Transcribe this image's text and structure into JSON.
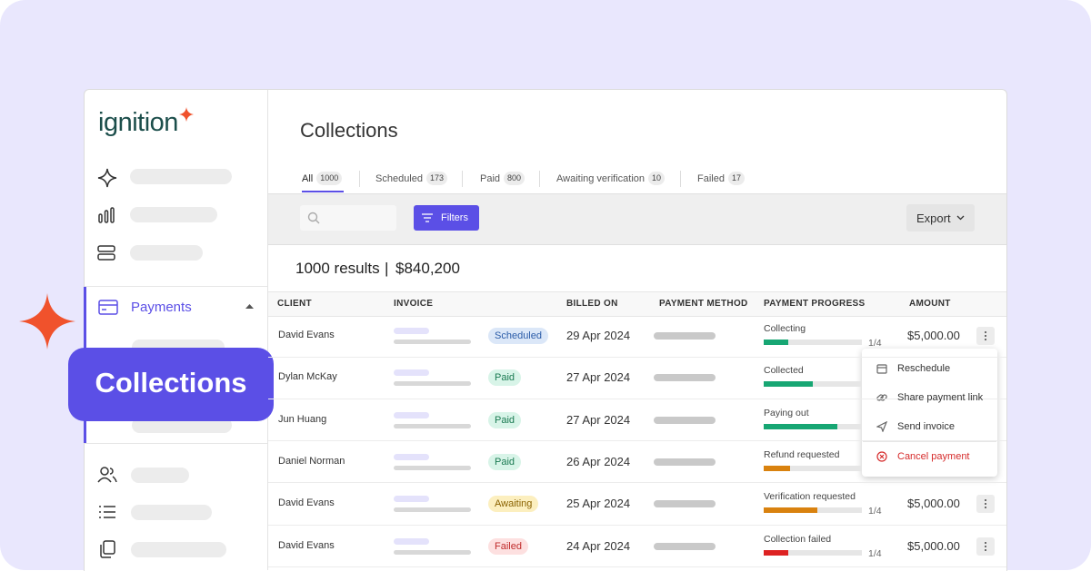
{
  "brand": "ignition",
  "nav": {
    "active": "Payments",
    "badge": "Collections"
  },
  "page": {
    "title": "Collections"
  },
  "tabs": [
    {
      "label": "All",
      "count": 1000
    },
    {
      "label": "Scheduled",
      "count": 173
    },
    {
      "label": "Paid",
      "count": 800
    },
    {
      "label": "Awaiting verification",
      "count": 10
    },
    {
      "label": "Failed",
      "count": 17
    }
  ],
  "toolbar": {
    "filters": "Filters",
    "export": "Export"
  },
  "summary": {
    "results": "1000 results",
    "separator": "|",
    "total": "$840,200"
  },
  "table": {
    "columns": [
      "CLIENT",
      "INVOICE",
      "BILLED ON",
      "PAYMENT METHOD",
      "PAYMENT PROGRESS",
      "AMOUNT"
    ],
    "rows": [
      {
        "client": "David Evans",
        "status": "Scheduled",
        "status_fg": "#2b5ca8",
        "status_bg": "#dbe7f8",
        "billed_on": "29 Apr 2024",
        "progress_label": "Collecting",
        "progress": 25,
        "progress_color": "#17a673",
        "step": "1/4",
        "amount": "$5,000.00"
      },
      {
        "client": "Dylan McKay",
        "status": "Paid",
        "status_fg": "#1b7a52",
        "status_bg": "#d8f4e8",
        "billed_on": "27 Apr 2024",
        "progress_label": "Collected",
        "progress": 50,
        "progress_color": "#17a673"
      },
      {
        "client": "Jun Huang",
        "status": "Paid",
        "status_fg": "#1b7a52",
        "status_bg": "#d8f4e8",
        "billed_on": "27 Apr 2024",
        "progress_label": "Paying out",
        "progress": 75,
        "progress_color": "#17a673"
      },
      {
        "client": "Daniel Norman",
        "status": "Paid",
        "status_fg": "#1b7a52",
        "status_bg": "#d8f4e8",
        "billed_on": "26 Apr 2024",
        "progress_label": "Refund requested",
        "progress": 27,
        "progress_color": "#d9820f"
      },
      {
        "client": "David Evans",
        "status": "Awaiting",
        "status_fg": "#8a6200",
        "status_bg": "#fcefbf",
        "billed_on": "25 Apr 2024",
        "progress_label": "Verification requested",
        "progress": 55,
        "progress_color": "#d9820f",
        "step": "1/4",
        "amount": "$5,000.00"
      },
      {
        "client": "David Evans",
        "status": "Failed",
        "status_fg": "#c02b2b",
        "status_bg": "#fde0e0",
        "billed_on": "24 Apr 2024",
        "progress_label": "Collection failed",
        "progress": 25,
        "progress_color": "#dd2222",
        "step": "1/4",
        "amount": "$5,000.00"
      }
    ]
  },
  "menu": {
    "items": [
      "Reschedule",
      "Share payment link",
      "Send invoice"
    ],
    "danger": "Cancel payment"
  }
}
